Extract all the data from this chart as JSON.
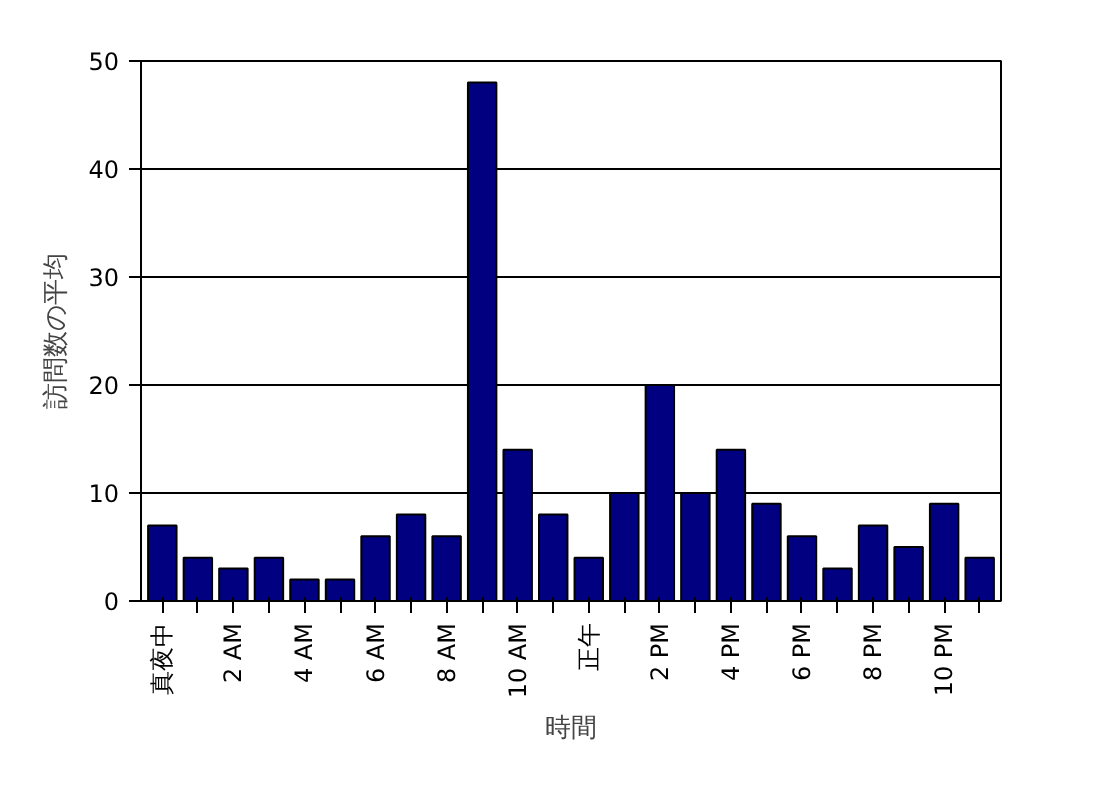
{
  "chart_data": {
    "type": "bar",
    "xlabel": "時間",
    "ylabel": "訪問数の平均",
    "categories": [
      "真夜中",
      null,
      "2 AM",
      null,
      "4 AM",
      null,
      "6 AM",
      null,
      "8 AM",
      null,
      "10 AM",
      null,
      "正午",
      null,
      "2 PM",
      null,
      "4 PM",
      null,
      "6 PM",
      null,
      "8 PM",
      null,
      "10 PM",
      null
    ],
    "values": [
      7,
      4,
      3,
      4,
      2,
      2,
      6,
      8,
      6,
      48,
      14,
      8,
      4,
      10,
      20,
      10,
      14,
      9,
      6,
      3,
      7,
      5,
      9,
      4
    ],
    "color": "#000080",
    "ylim": [
      0,
      50
    ],
    "yticks": [
      0,
      10,
      20,
      30,
      40,
      50
    ],
    "grid": "y"
  }
}
